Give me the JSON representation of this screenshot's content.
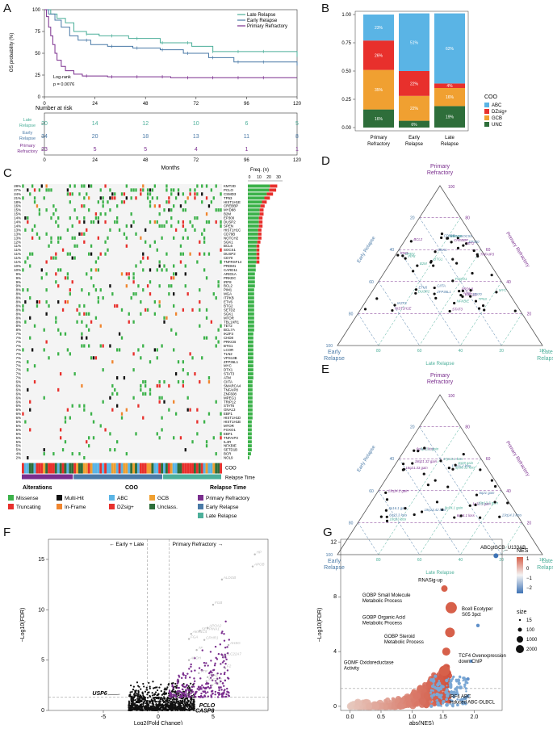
{
  "panels": {
    "A": "A",
    "B": "B",
    "C": "C",
    "D": "D",
    "E": "E",
    "F": "F",
    "G": "G"
  },
  "km": {
    "ylabel": "OS probability (%)",
    "xlabel": "Months",
    "yticks": [
      "100",
      "75",
      "50",
      "25",
      "0"
    ],
    "xticks": [
      "0",
      "24",
      "48",
      "72",
      "96",
      "120"
    ],
    "legend": [
      {
        "name": "Late Relapse",
        "color": "#4caf9a"
      },
      {
        "name": "Early Relapse",
        "color": "#4a7aa7"
      },
      {
        "name": "Primary Refractory",
        "color": "#7a2e8e"
      }
    ],
    "logrank": "Log-rank",
    "pvalue": "p = 0.0076",
    "risk_title": "Number at risk",
    "risk_rows": [
      {
        "label1": "Late",
        "label2": "Relapse",
        "color": "#4caf9a",
        "values": [
          "20",
          "14",
          "12",
          "10",
          "6",
          "5"
        ]
      },
      {
        "label1": "Early",
        "label2": "Relapse",
        "color": "#4a7aa7",
        "values": [
          "34",
          "20",
          "18",
          "13",
          "11",
          "8"
        ]
      },
      {
        "label1": "Primary",
        "label2": "Refractory",
        "color": "#7a2e8e",
        "values": [
          "23",
          "5",
          "5",
          "4",
          "1",
          "1"
        ]
      }
    ]
  },
  "coo_chart": {
    "legend_title": "COO",
    "legend": [
      {
        "name": "ABC",
        "color": "#5ab4e5"
      },
      {
        "name": "DZsig+",
        "color": "#e8302c"
      },
      {
        "name": "GCB",
        "color": "#f0a031"
      },
      {
        "name": "UNC",
        "color": "#2e6e3a"
      }
    ],
    "yticks": [
      "1.00",
      "0.75",
      "0.50",
      "0.25",
      "0.00"
    ],
    "bars": [
      {
        "l1": "Primary",
        "l2": "Refractory",
        "segs": [
          {
            "v": 0.16,
            "t": "16%"
          },
          {
            "v": 0.35,
            "t": "35%"
          },
          {
            "v": 0.26,
            "t": "26%"
          },
          {
            "v": 0.23,
            "t": "23%"
          }
        ]
      },
      {
        "l1": "Early",
        "l2": "Relapse",
        "segs": [
          {
            "v": 0.06,
            "t": "6%"
          },
          {
            "v": 0.22,
            "t": "22%"
          },
          {
            "v": 0.22,
            "t": "22%"
          },
          {
            "v": 0.51,
            "t": "51%"
          }
        ]
      },
      {
        "l1": "Late",
        "l2": "Relapse",
        "segs": [
          {
            "v": 0.19,
            "t": "19%"
          },
          {
            "v": 0.16,
            "t": "16%"
          },
          {
            "v": 0.04,
            "t": "4%"
          },
          {
            "v": 0.62,
            "t": "62%"
          }
        ]
      }
    ]
  },
  "oncoprint": {
    "freq_title": "Freq. (n)",
    "freq_ticks": [
      "0",
      "10",
      "20",
      "30"
    ],
    "genes": [
      "KMT2D",
      "PCLO",
      "CSMD3",
      "TP53",
      "HIST1H1E",
      "CREBBP",
      "MYD88",
      "B2M",
      "EP300",
      "DUSP2",
      "SPEN",
      "HIST1H1C",
      "CD79B",
      "NOTCH2",
      "SGK1",
      "BCL6",
      "SOCS1",
      "DUSP2",
      "CD70",
      "TNFRSF14",
      "PRDM1",
      "CARD11",
      "ARID1A",
      "PRKDC",
      "IRF8",
      "BCL2",
      "PIM1",
      "MGA",
      "ITPKB",
      "ETV6",
      "BTG2",
      "SETD2",
      "SGK1",
      "MTOR",
      "TBL1XR1",
      "TET2",
      "BCL7A",
      "IKZF3",
      "CHD8",
      "PRKCB",
      "BTG1",
      "LCOR",
      "TLN2",
      "VPS13B",
      "ZFP36L1",
      "MYC",
      "DTX1",
      "STAT3",
      "ATM",
      "CIITA",
      "SMARCA4",
      "TNFAIP8",
      "ZNF608",
      "MPEG1",
      "TRIP12",
      "STAT6",
      "GNA13",
      "EBF1",
      "HIST1H1D",
      "HIST1H1B",
      "MTOR",
      "FOXO1",
      "EBF1",
      "TNFAIP3",
      "IL4R",
      "NFKBIE",
      "SETD1B",
      "BCR",
      "NOL9"
    ],
    "pcts": [
      "28%",
      "27%",
      "24%",
      "21%",
      "18%",
      "16%",
      "15%",
      "15%",
      "14%",
      "14%",
      "14%",
      "13%",
      "13%",
      "13%",
      "12%",
      "11%",
      "11%",
      "11%",
      "11%",
      "11%",
      "10%",
      "10%",
      "9%",
      "9%",
      "9%",
      "9%",
      "8%",
      "8%",
      "8%",
      "8%",
      "8%",
      "8%",
      "8%",
      "8%",
      "8%",
      "8%",
      "8%",
      "7%",
      "7%",
      "7%",
      "7%",
      "7%",
      "7%",
      "7%",
      "7%",
      "7%",
      "7%",
      "7%",
      "7%",
      "6%",
      "6%",
      "6%",
      "6%",
      "6%",
      "6%",
      "6%",
      "6%",
      "6%",
      "6%",
      "5%",
      "5%",
      "5%",
      "5%",
      "5%",
      "5%",
      "5%",
      "5%",
      "4%",
      "2%"
    ],
    "track_coo": "COO",
    "track_relapse": "Relapse Time",
    "legends": {
      "alterations_title": "Alterations",
      "alterations": [
        {
          "name": "Missense",
          "color": "#3cb24a"
        },
        {
          "name": "Multi-Hit",
          "color": "#111111"
        },
        {
          "name": "Truncating",
          "color": "#e8302c"
        },
        {
          "name": "In-Frame",
          "color": "#f0862f"
        }
      ],
      "coo_title": "COO",
      "coo": [
        {
          "name": "ABC",
          "color": "#5ab4e5"
        },
        {
          "name": "GCB",
          "color": "#f0a031"
        },
        {
          "name": "DZsig+",
          "color": "#e8302c"
        },
        {
          "name": "Unclass.",
          "color": "#2e6e3a"
        }
      ],
      "relapse_title": "Relapse Time",
      "relapse": [
        {
          "name": "Primary Refractory",
          "color": "#7a2e8e"
        },
        {
          "name": "Early Relapse",
          "color": "#4a7aa7"
        },
        {
          "name": "Late Relapse",
          "color": "#4caf9a"
        }
      ]
    }
  },
  "ternary_d": {
    "top": "Primary",
    "top2": "Refractory",
    "left": "Early",
    "left2": "Relapse",
    "right": "Late",
    "right2": "Relapse",
    "side_left": "Early Relapse",
    "side_right": "Primary Refractory",
    "side_bottom": "Late Relapse",
    "ticks": [
      "20",
      "40",
      "60",
      "80",
      "100"
    ],
    "labels": [
      "KMT2D",
      "CD79B",
      "DUSP2",
      "PIM1",
      "MYD88",
      "BTG1",
      "HIST1H1E",
      "SOCS1",
      "B2M",
      "CREBBP",
      "EP300",
      "TP53",
      "BCL2",
      "SGK1",
      "IRF8",
      "STAT3",
      "CD70",
      "FOXO1",
      "TNFAIP3",
      "ETV6",
      "GNA13",
      "ATM",
      "CIITA",
      "SPEN",
      "PRDM1",
      "IKZF3",
      "NFKBIE",
      "TET2",
      "ZFP36L1",
      "MYC"
    ]
  },
  "ternary_e": {
    "top": "Primary",
    "top2": "Refractory",
    "left": "Early",
    "left2": "Relapse",
    "right": "Late",
    "right2": "Relapse",
    "side_left": "Early Relapse",
    "side_right": "Primary Refractory",
    "side_bottom": "Late Relapse",
    "ticks": [
      "20",
      "40",
      "60",
      "80",
      "100"
    ],
    "labels": [
      "18q23 loss",
      "13q14.3 loss",
      "18q21.33 gain",
      "17p13.1 loss",
      "17p11.2 loss",
      "6q16.1 loss",
      "1p36.32 loss",
      "6q21 gain",
      "13q14.2 gain",
      "9p24.1 gain",
      "19q13.42 loss",
      "1p32.1 gain",
      "3q28 gain",
      "6q23.3 loss",
      "6q14.1 loss",
      "6p21.1 gain",
      "2p16.1 gain",
      "18q21.32 gain",
      "19p13.3 gain"
    ]
  },
  "volcano": {
    "ylabel": "−Log10(FDR)",
    "xlabel": "Log2(Fold Change)",
    "left_label": "Early + Late",
    "right_label": "Primary Refractory",
    "yticks": [
      "15",
      "10",
      "5",
      "0"
    ],
    "xticks": [
      "-5",
      "0",
      "5"
    ],
    "genes_marked": [
      "USP6",
      "PCLO",
      "CASP8"
    ],
    "genes_grey": [
      "HP",
      "APOB",
      "ALDOB",
      "FGB",
      "APOA2",
      "SERPINA1",
      "AKR1C4",
      "FGA",
      "CPHR1",
      "AHSG",
      "TF",
      "SLC22A7",
      "APOH",
      "F2",
      "TTR",
      "ITIH2",
      "SLC2A2",
      "AGT"
    ]
  },
  "gsea": {
    "ylabel": "−Log10(FDR)",
    "xlabel": "abs(NES)",
    "yticks": [
      "12",
      "8",
      "4",
      "0"
    ],
    "xticks": [
      "0.0",
      "0.5",
      "1.0",
      "1.5",
      "2.0"
    ],
    "nes_title": "NES",
    "nes_ticks": [
      "1",
      "0",
      "−1",
      "−2"
    ],
    "size_title": "size",
    "size_ticks": [
      "15",
      "100",
      "1000",
      "2000"
    ],
    "labels": [
      {
        "l1": "ABCgtGCB_U133AB",
        "l2": ""
      },
      {
        "l1": "RNASig-up",
        "l2": ""
      },
      {
        "l1": "GOBP Small Molecule",
        "l2": "Metabolic Process"
      },
      {
        "l1": "Bcell Ecotyper",
        "l2": "S05 3pct"
      },
      {
        "l1": "GOBP Organic Acid",
        "l2": "Metabolic Process"
      },
      {
        "l1": "GOBP Steroid",
        "l2": "Metabolic Process"
      },
      {
        "l1": "TCF4 Overexpression",
        "l2": "down ChIP"
      },
      {
        "l1": "GOMF Oxidoreductase",
        "l2": "Activity"
      },
      {
        "l1": "IRF4 ABC",
        "l2": "Induced ABC-DLBCL"
      }
    ]
  }
}
